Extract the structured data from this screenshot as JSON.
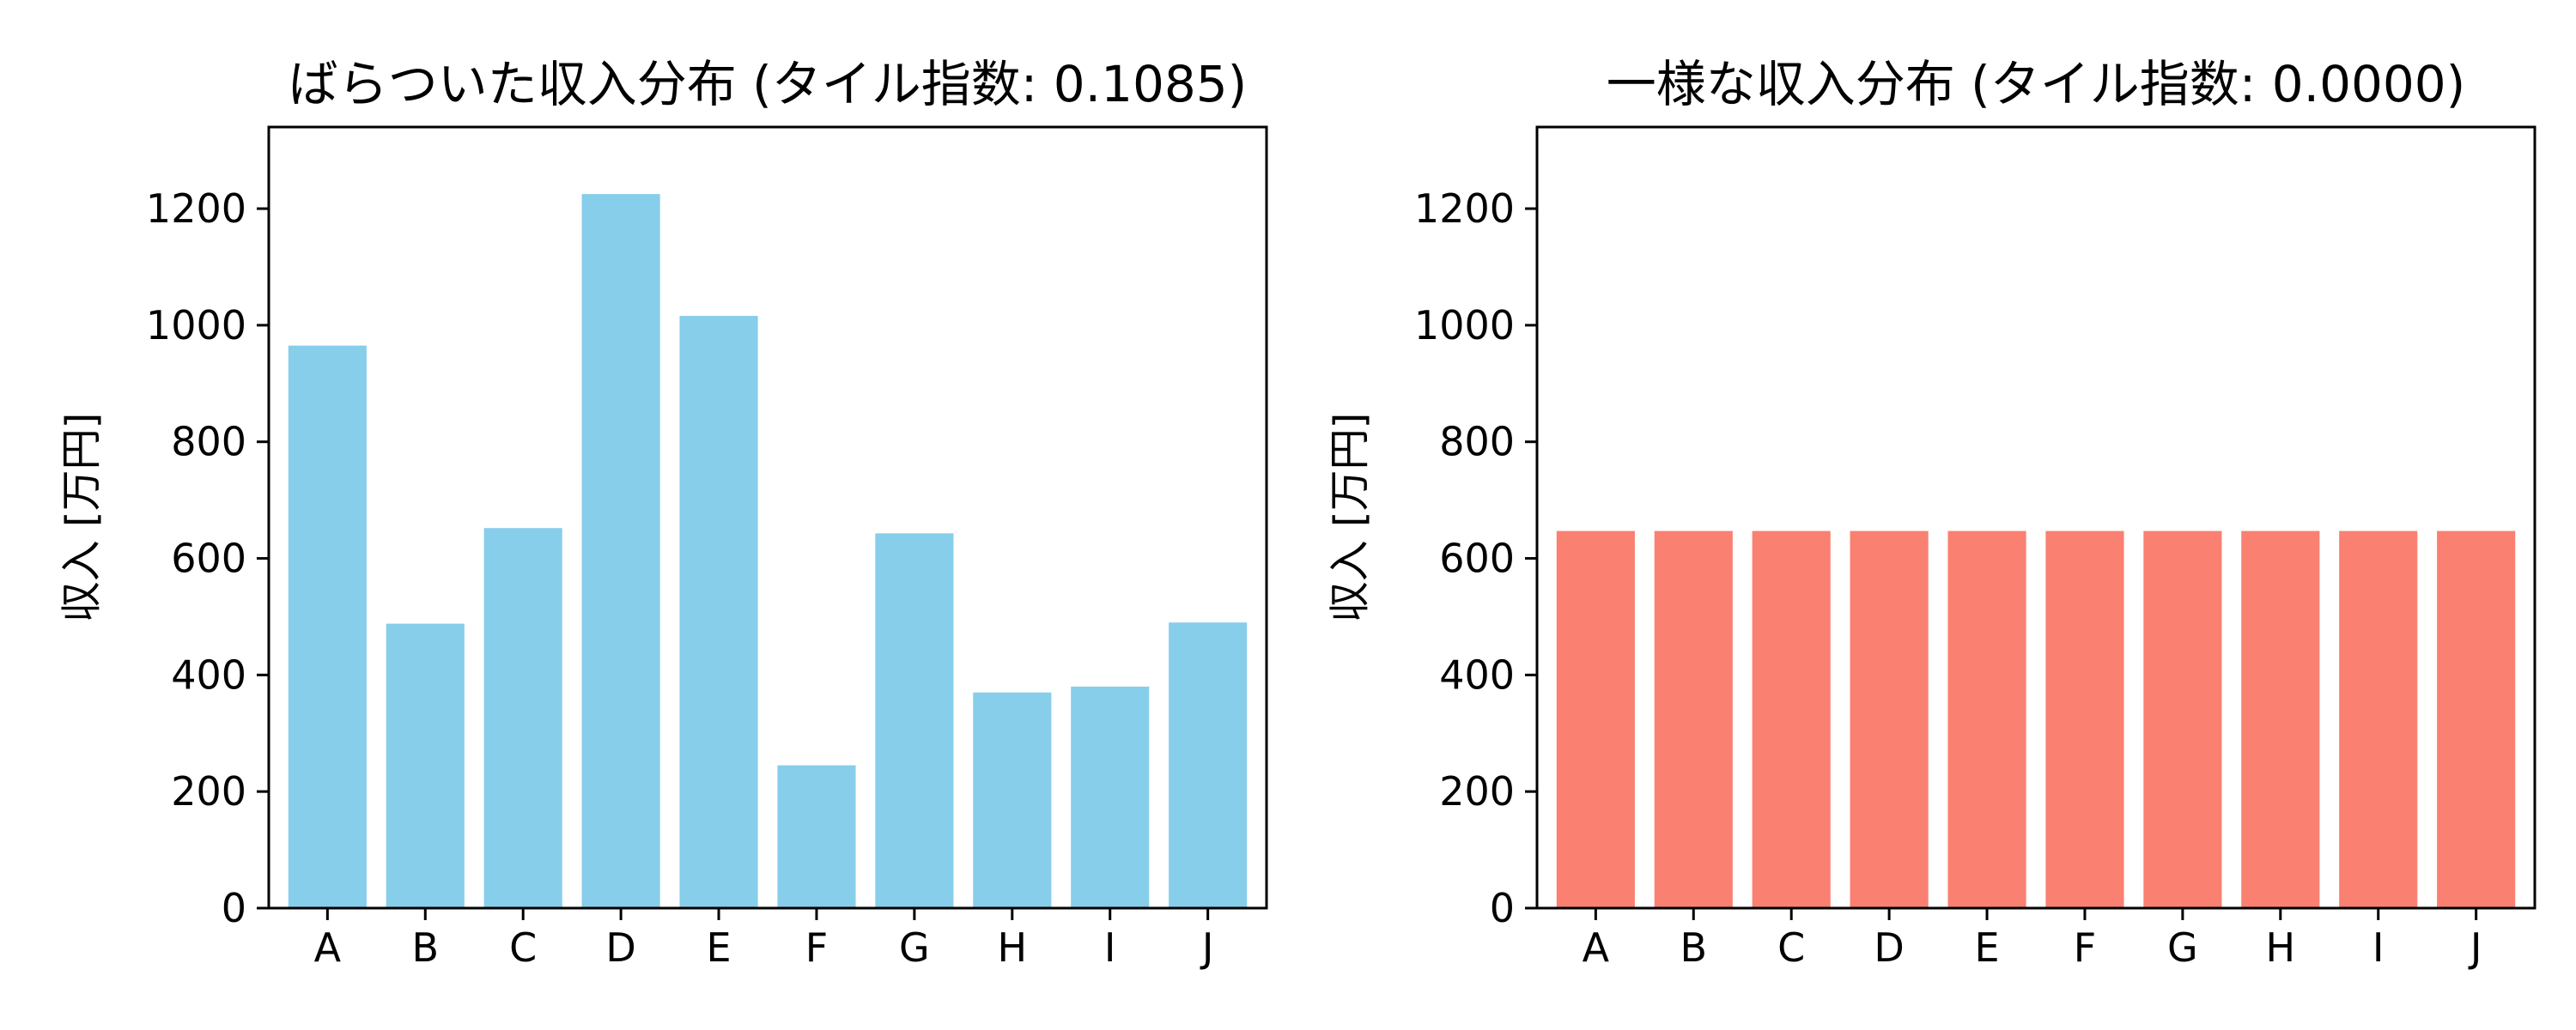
{
  "chart_data": [
    {
      "type": "bar",
      "title": "ばらついた収入分布 (タイル指数: 0.1085)",
      "xlabel": "",
      "ylabel": "収入 [万円]",
      "categories": [
        "A",
        "B",
        "C",
        "D",
        "E",
        "F",
        "G",
        "H",
        "I",
        "J"
      ],
      "values": [
        965,
        488,
        652,
        1225,
        1016,
        245,
        643,
        370,
        380,
        490
      ],
      "ylim": [
        0,
        1340
      ],
      "yticks": [
        0,
        200,
        400,
        600,
        800,
        1000,
        1200
      ],
      "color": "#87CEEB",
      "grid": false
    },
    {
      "type": "bar",
      "title": "一様な収入分布 (タイル指数: 0.0000)",
      "xlabel": "",
      "ylabel": "収入 [万円]",
      "categories": [
        "A",
        "B",
        "C",
        "D",
        "E",
        "F",
        "G",
        "H",
        "I",
        "J"
      ],
      "values": [
        647,
        647,
        647,
        647,
        647,
        647,
        647,
        647,
        647,
        647
      ],
      "ylim": [
        0,
        1340
      ],
      "yticks": [
        0,
        200,
        400,
        600,
        800,
        1000,
        1200
      ],
      "color": "#FA8072",
      "grid": false
    }
  ]
}
